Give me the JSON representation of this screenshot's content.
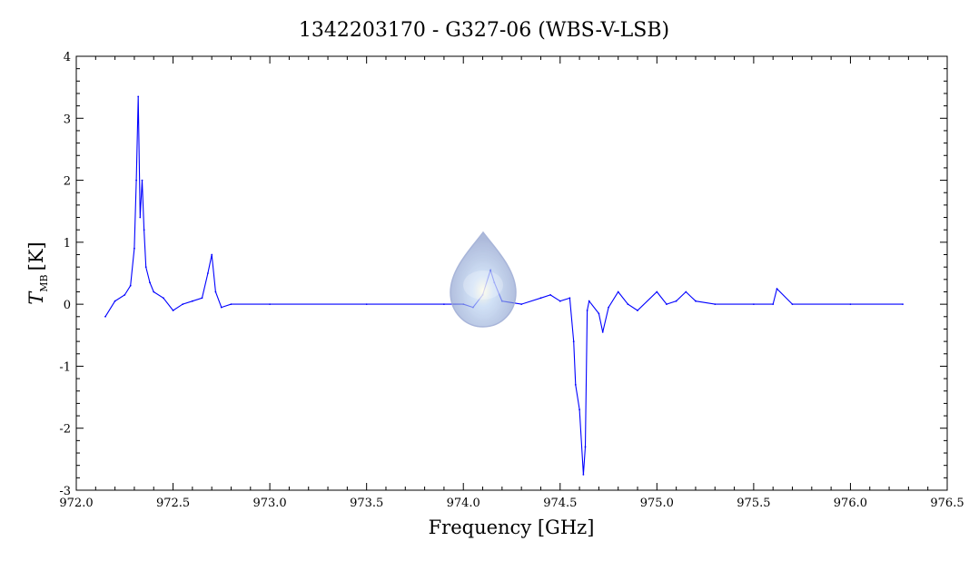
{
  "chart_data": {
    "type": "line",
    "title": "1342203170 - G327-06 (WBS-V-LSB)",
    "xlabel": "Frequency [GHz]",
    "ylabel": {
      "symbol": "T",
      "subscript": "MB",
      "unit": "[K]"
    },
    "xlim": [
      972.0,
      976.5
    ],
    "ylim": [
      -3,
      4
    ],
    "x_ticks": [
      "972.0",
      "972.5",
      "973.0",
      "973.5",
      "974.0",
      "974.5",
      "975.0",
      "975.5",
      "976.0",
      "976.5"
    ],
    "y_ticks": [
      "4",
      "3",
      "2",
      "1",
      "0",
      "-1",
      "-2",
      "-3"
    ],
    "grid": false,
    "series": [
      {
        "color": "#0000ff",
        "x": [
          972.15,
          972.2,
          972.25,
          972.28,
          972.3,
          972.31,
          972.32,
          972.33,
          972.34,
          972.35,
          972.36,
          972.38,
          972.4,
          972.45,
          972.5,
          972.55,
          972.6,
          972.65,
          972.68,
          972.7,
          972.72,
          972.75,
          972.8,
          973.0,
          973.5,
          973.9,
          974.0,
          974.05,
          974.1,
          974.14,
          974.16,
          974.2,
          974.3,
          974.4,
          974.45,
          974.5,
          974.55,
          974.57,
          974.58,
          974.6,
          974.62,
          974.63,
          974.64,
          974.65,
          974.7,
          974.72,
          974.75,
          974.8,
          974.85,
          974.9,
          975.0,
          975.05,
          975.1,
          975.15,
          975.2,
          975.3,
          975.5,
          975.6,
          975.62,
          975.7,
          976.0,
          976.27
        ],
        "y": [
          -0.2,
          0.05,
          0.15,
          0.3,
          0.9,
          2.0,
          3.35,
          1.4,
          2.0,
          1.2,
          0.6,
          0.35,
          0.2,
          0.1,
          -0.1,
          0.0,
          0.05,
          0.1,
          0.5,
          0.8,
          0.2,
          -0.05,
          0.0,
          0.0,
          0.0,
          0.0,
          0.0,
          -0.05,
          0.15,
          0.55,
          0.35,
          0.05,
          0.0,
          0.1,
          0.15,
          0.05,
          0.1,
          -0.6,
          -1.3,
          -1.7,
          -2.75,
          -2.3,
          -0.1,
          0.05,
          -0.15,
          -0.45,
          -0.05,
          0.2,
          0.0,
          -0.1,
          0.2,
          0.0,
          0.05,
          0.2,
          0.05,
          0.0,
          0.0,
          0.0,
          0.25,
          0.0,
          0.0,
          0.0
        ]
      }
    ]
  }
}
